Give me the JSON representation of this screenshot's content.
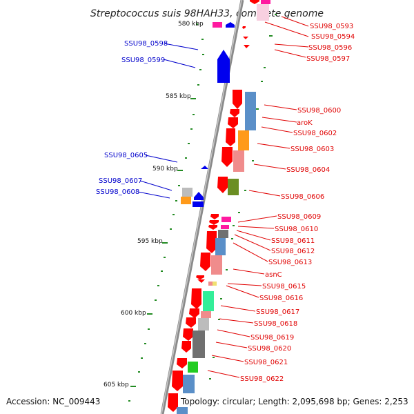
{
  "title": "Streptococcus suis 98HAH33, complete genome",
  "footer": {
    "accession": "Accession: NC_009443",
    "topology": "Topology: circular; Length: 2,095,698 bp; Genes: 2,253"
  },
  "scale_labels": [
    "580 kbp",
    "585 kbp",
    "590 kbp",
    "595 kbp",
    "600 kbp",
    "605 kbp"
  ],
  "gene_labels_left": [
    "SSU98_0598",
    "SSU98_0599",
    "SSU98_0605",
    "SSU98_0607",
    "SSU98_0608"
  ],
  "gene_labels_right": [
    "SSU98_0593",
    "SSU98_0594",
    "SSU98_0596",
    "SSU98_0597",
    "SSU98_0600",
    "aroK",
    "SSU98_0602",
    "SSU98_0603",
    "SSU98_0604",
    "SSU98_0606",
    "SSU98_0609",
    "SSU98_0610",
    "SSU98_0611",
    "SSU98_0612",
    "SSU98_0613",
    "asnC",
    "SSU98_0615",
    "SSU98_0616",
    "SSU98_0617",
    "SSU98_0618",
    "SSU98_0619",
    "SSU98_0620",
    "SSU98_0621",
    "SSU98_0622"
  ],
  "colors": {
    "backbone": "#8a8a8a",
    "forward_strand": "#ff0000",
    "reverse_strand": "#0000ee",
    "tick": "#228b22",
    "label_right": "#e00000",
    "label_left": "#0000cc",
    "cog_blue": "#5a8fc8",
    "cog_orange": "#ff9a1a",
    "cog_pink": "#f08c8c",
    "cog_olive": "#6b8e23",
    "cog_magenta": "#ff1aa0",
    "cog_gray": "#bcbcbc",
    "cog_darkgray": "#707070",
    "cog_green": "#22cc22",
    "cog_mint": "#33ee99"
  }
}
